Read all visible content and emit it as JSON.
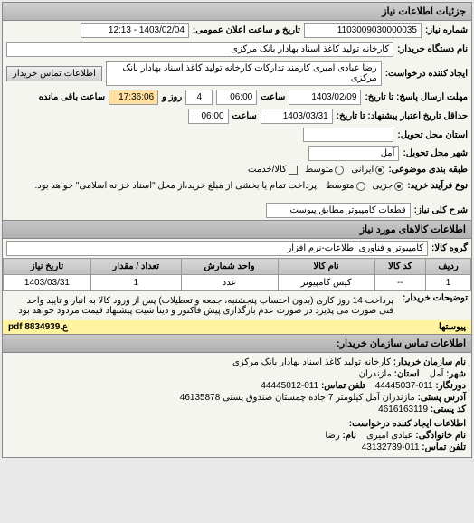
{
  "header": {
    "title": "جزئیات اطلاعات نیاز"
  },
  "form": {
    "request_number_label": "شماره نیاز:",
    "request_number": "1103009030000035",
    "announce_date_label": "تاریخ و ساعت اعلان عمومی:",
    "announce_date": "1403/02/04 - 12:13",
    "buyer_device_label": "نام دستگاه خریدار:",
    "buyer_device": "کارخانه تولید کاغذ اسناد بهادار بانک مرکزی",
    "creator_label": "ایجاد کننده درخواست:",
    "creator": "رضا عبادی امیری کارمند تدارکات کارخانه تولید کاغذ اسناد بهادار بانک مرکزی",
    "contact_btn": "اطلاعات تماس خریدار",
    "deadline_label": "مهلت ارسال پاسخ: تا تاریخ:",
    "deadline_date": "1403/02/09",
    "time_label": "ساعت",
    "deadline_time": "06:00",
    "days_label": "روز و",
    "days": "4",
    "remaining_time": "17:36:06",
    "remaining_label": "ساعت باقی مانده",
    "validity_label": "حداقل تاریخ اعتبار پیشنهاد: تا تاریخ:",
    "validity_date": "1403/03/31",
    "validity_time": "06:00",
    "delivery_province_label": "استان محل تحویل:",
    "delivery_city_label": "شهر محل تحویل:",
    "delivery_city": "آمل",
    "classification_label": "طبقه بندی موضوعی:",
    "opt_iranian": "ایرانی",
    "opt_service": "کالا/خدمت",
    "opt_medium": "متوسط",
    "process_type_label": "نوع فرآیند خرید:",
    "opt_partial": "جزیی",
    "opt_medium2": "متوسط",
    "process_note": "پرداخت تمام یا بخشی از مبلغ خرید،از محل \"اسناد خزانه اسلامی\" خواهد بود.",
    "overall_desc_label": "شرح کلی نیاز:",
    "overall_desc": "قطعات کامپیوتر مطابق پیوست"
  },
  "goods": {
    "section_title": "اطلاعات کالاهای مورد نیاز",
    "group_label": "گروه کالا:",
    "group_value": "کامپیوتر و فناوری اطلاعات-نرم افزار",
    "table": {
      "headers": [
        "ردیف",
        "کد کالا",
        "نام کالا",
        "واحد شمارش",
        "تعداد / مقدار",
        "تاریخ نیاز"
      ],
      "rows": [
        [
          "1",
          "--",
          "کیس کامپیوتر",
          "عدد",
          "1",
          "1403/03/31"
        ]
      ]
    },
    "explanation_label": "توضیحات خریدار:",
    "explanation": "پرداخت 14 روز کاری (بدون احتساب پنجشنبه، جمعه و تعطیلات) پس از ورود کالا به انبار و تایید واحد فنی صورت می پذیرد در صورت عدم بارگذاری پیش فاکتور و دیتا شیت پیشنهاد قیمت مردود خواهد بود",
    "attachments_label": "پیوستها",
    "attachment_file": "ع.pdf 8834939"
  },
  "contact": {
    "section_title": "اطلاعات تماس سازمان خریدار:",
    "org_label": "نام سازمان خریدار:",
    "org_value": "کارخانه تولید کاغذ اسناد بهادار بانک مرکزی",
    "city_label": "شهر:",
    "city_value": "آمل",
    "province_label": "استان:",
    "province_value": "مازندران",
    "fax_label": "دورنگار:",
    "fax_value": "011-44445037",
    "phone_label": "تلفن تماس:",
    "phone_value": "011-44445012",
    "address_label": "آدرس پستی:",
    "address_value": "مازندران آمل کیلومتر 7 جاده چمستان صندوق پستی 46135878",
    "postal_label": "کد پستی:",
    "postal_value": "4616163119",
    "creator_section": "اطلاعات ایجاد کننده درخواست:",
    "family_label": "نام خانوادگی:",
    "family_value": "عبادی امیری",
    "name_label": "نام:",
    "name_value": "رضا",
    "creator_phone_label": "تلفن تماس:",
    "creator_phone_value": "011-43132739"
  }
}
